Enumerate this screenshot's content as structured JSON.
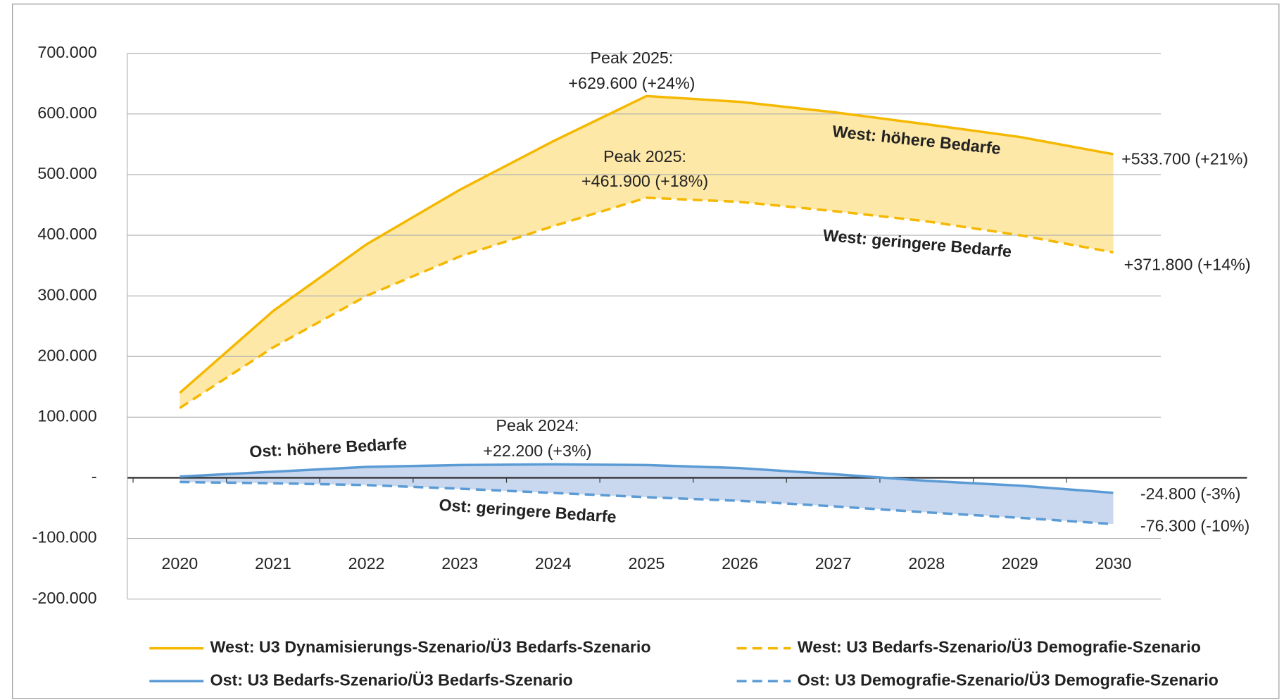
{
  "chart_data": {
    "type": "line",
    "categories": [
      "2020",
      "2021",
      "2022",
      "2023",
      "2024",
      "2025",
      "2026",
      "2027",
      "2028",
      "2029",
      "2030"
    ],
    "ylim": [
      -200000,
      700000
    ],
    "yticks": [
      {
        "value": 700000,
        "label": "700.000"
      },
      {
        "value": 600000,
        "label": "600.000"
      },
      {
        "value": 500000,
        "label": "500.000"
      },
      {
        "value": 400000,
        "label": "400.000"
      },
      {
        "value": 300000,
        "label": "300.000"
      },
      {
        "value": 200000,
        "label": "200.000"
      },
      {
        "value": 100000,
        "label": "100.000"
      },
      {
        "value": 0,
        "label": "-"
      },
      {
        "value": -100000,
        "label": "-100.000"
      },
      {
        "value": -200000,
        "label": "-200.000"
      }
    ],
    "grid": true,
    "legend": "bottom",
    "series": [
      {
        "name": "West: U3 Dynamisierungs-Szenario/Ü3 Bedarfs-Szenario",
        "color": "#f5b800",
        "dash": false,
        "values": [
          140000,
          275000,
          385000,
          475000,
          555000,
          629600,
          620000,
          603000,
          583000,
          562000,
          533700
        ],
        "value_labels": [
          null,
          null,
          null,
          null,
          null,
          "+629.600 (+24%)",
          null,
          null,
          null,
          null,
          "+533.700 (+21%)"
        ]
      },
      {
        "name": "West: U3 Bedarfs-Szenario/Ü3 Demografie-Szenario",
        "color": "#f5b800",
        "dash": true,
        "values": [
          115000,
          215000,
          300000,
          365000,
          415000,
          461900,
          455000,
          440000,
          423000,
          400000,
          371800
        ],
        "value_labels": [
          null,
          null,
          null,
          null,
          null,
          "+461.900 (+18%)",
          null,
          null,
          null,
          null,
          "+371.800 (+14%)"
        ]
      },
      {
        "name": "Ost: U3 Bedarfs-Szenario/Ü3 Bedarfs-Szenario",
        "color": "#5b9bd5",
        "dash": false,
        "values": [
          2000,
          10000,
          18000,
          21000,
          22200,
          21000,
          16000,
          6000,
          -5000,
          -13000,
          -24800
        ],
        "value_labels": [
          null,
          null,
          null,
          null,
          "+22.200 (+3%)",
          null,
          null,
          null,
          null,
          null,
          "-24.800 (-3%)"
        ]
      },
      {
        "name": "Ost: U3 Demografie-Szenario/Ü3 Demografie-Szenario",
        "color": "#5b9bd5",
        "dash": true,
        "values": [
          -7000,
          -9000,
          -12000,
          -18000,
          -25000,
          -32000,
          -38000,
          -47000,
          -57000,
          -66000,
          -76300
        ],
        "value_labels": [
          null,
          null,
          null,
          null,
          null,
          null,
          null,
          null,
          null,
          null,
          "-76.300 (-10%)"
        ]
      }
    ],
    "bands": [
      {
        "between": [
          0,
          1
        ],
        "color": "#fde8a8"
      },
      {
        "between": [
          2,
          3
        ],
        "color": "#c9d8ee"
      }
    ],
    "annotations": [
      "Peak 2025:",
      "Peak 2025:",
      "Peak 2024:",
      "West: höhere Bedarfe",
      "West: geringere Bedarfe",
      "Ost: höhere Bedarfe",
      "Ost: geringere Bedarfe"
    ]
  }
}
